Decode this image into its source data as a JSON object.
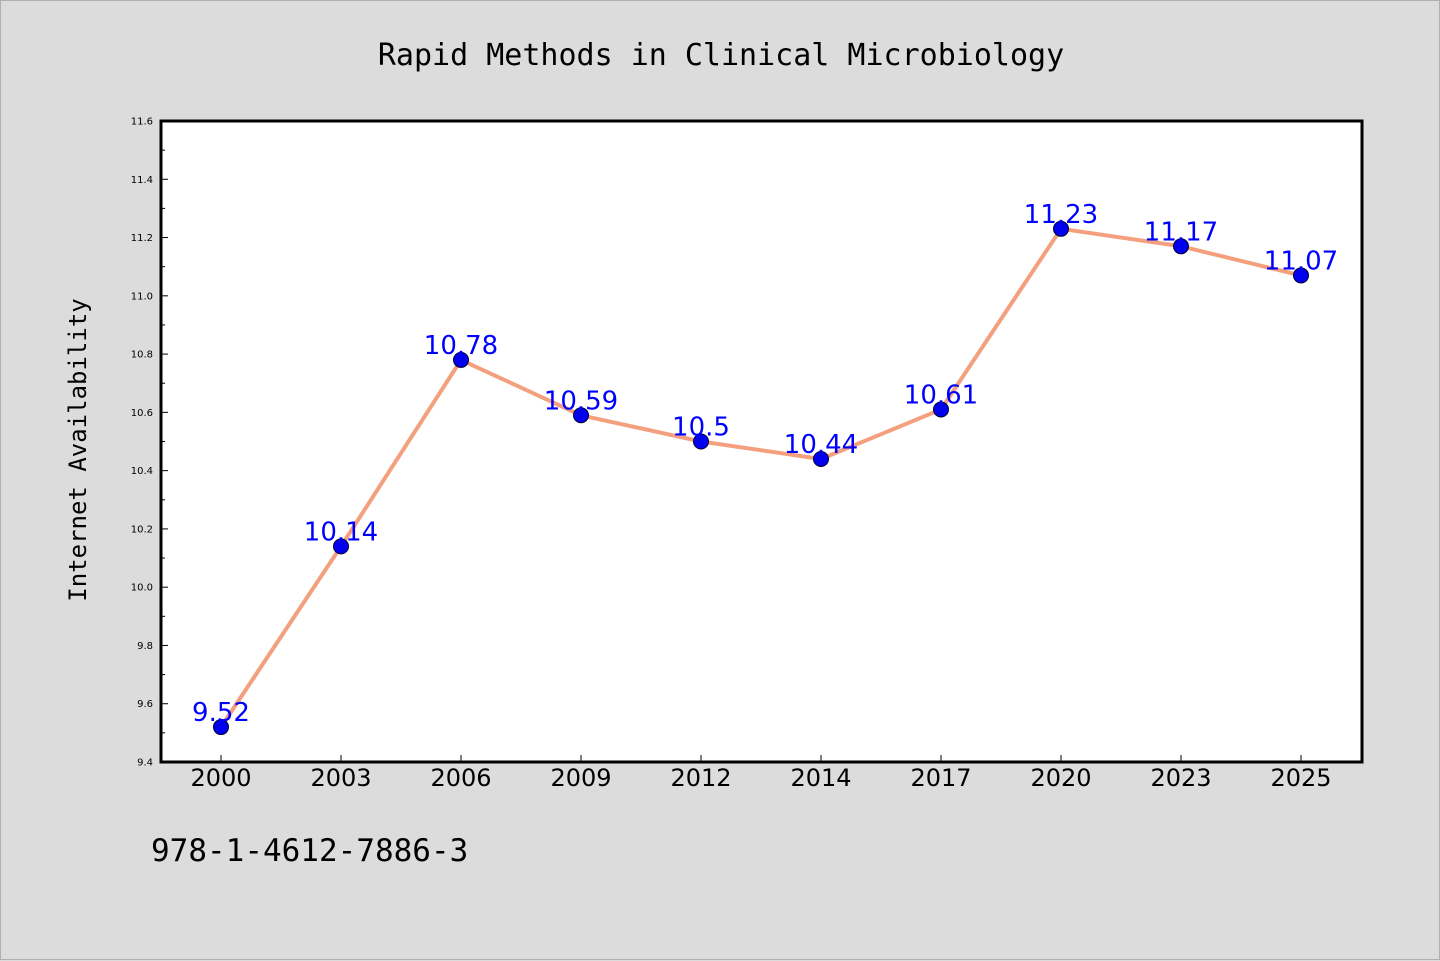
{
  "chart_data": {
    "type": "line",
    "title": "Rapid Methods in Clinical Microbiology",
    "xlabel": "",
    "ylabel": "Internet Availability",
    "categories": [
      "2000",
      "2003",
      "2006",
      "2009",
      "2012",
      "2014",
      "2017",
      "2020",
      "2023",
      "2025"
    ],
    "series": [
      {
        "values": [
          9.52,
          10.14,
          10.78,
          10.59,
          10.5,
          10.44,
          10.61,
          11.23,
          11.17,
          11.07
        ],
        "data_labels": [
          "9.52",
          "10.14",
          "10.78",
          "10.59",
          "10.5",
          "10.44",
          "10.61",
          "11.23",
          "11.17",
          "11.07"
        ],
        "line_color": "#f4a07f",
        "marker_color": "#0000ee"
      }
    ],
    "ylim": [
      9.4,
      11.6
    ],
    "yticks": [
      "9.4",
      "9.6",
      "9.8",
      "10.0",
      "10.2",
      "10.4",
      "10.6",
      "10.8",
      "11.0",
      "11.2",
      "11.4",
      "11.6"
    ],
    "grid": false,
    "legend": "none",
    "data_label_color": "#0000ff"
  },
  "footer": {
    "isbn": "978-1-4612-7886-3"
  }
}
